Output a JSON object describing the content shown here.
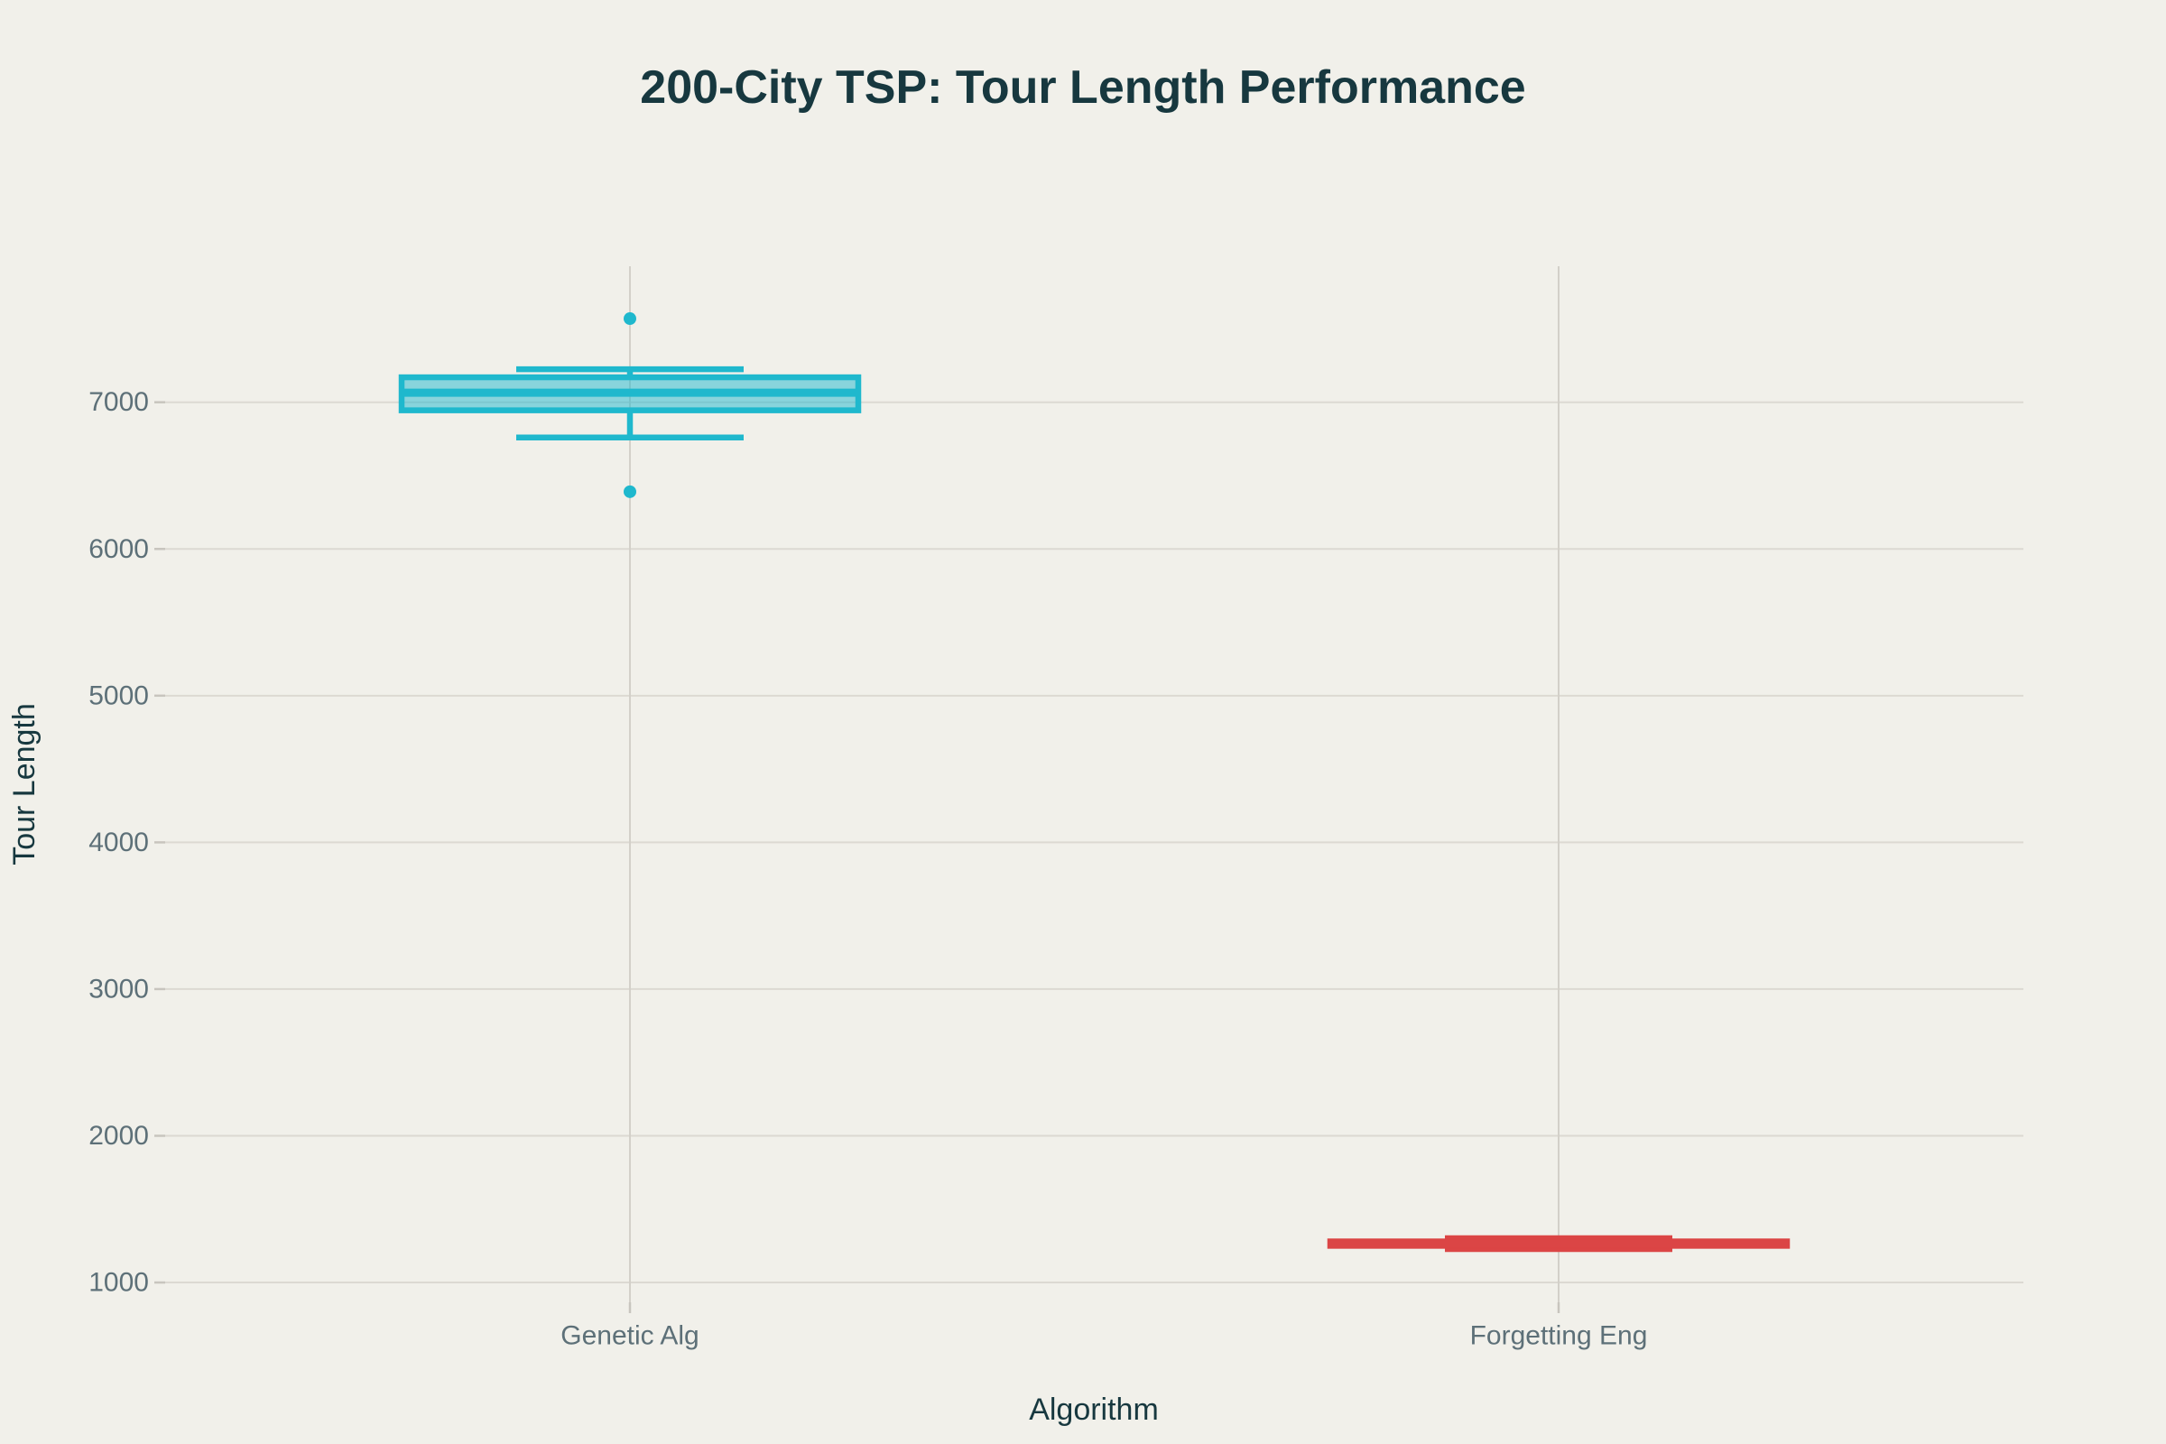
{
  "page_title": "200-City TSP: Tour Length Performance",
  "colors": {
    "background": "#f1f0ea",
    "title_text": "#17383f",
    "axis_title_text": "#17383f",
    "tick_label_text": "#5d7078",
    "hgrid": "#dcd9d2",
    "vgrid": "#d3d0c9",
    "tick_mark": "#c8c5be",
    "genetic_accent": "#1fb8cd",
    "forgetting_accent": "#db4545"
  },
  "chart_data": {
    "type": "box",
    "title": "200-City TSP: Tour Length Performance",
    "xlabel": "Algorithm",
    "ylabel": "Tour Length",
    "categories": [
      "Genetic Alg",
      "Forgetting Eng"
    ],
    "yticks": [
      1000,
      2000,
      3000,
      4000,
      5000,
      6000,
      7000
    ],
    "ylim": [
      865,
      7927
    ],
    "grid": true,
    "legend_position": "none",
    "series": [
      {
        "name": "Genetic Alg",
        "color": "#1fb8cd",
        "fill_opacity": 0.5,
        "stats": {
          "low": 6760,
          "q1": 6945,
          "median": 7065,
          "q3": 7170,
          "high": 7225
        },
        "outliers": [
          7570,
          6390
        ]
      },
      {
        "name": "Forgetting Eng",
        "color": "#db4545",
        "fill_opacity": 0.5,
        "stats": {
          "low": 1228,
          "q1": 1250,
          "median": 1264,
          "q3": 1280,
          "high": 1302
        },
        "outliers": []
      }
    ]
  }
}
